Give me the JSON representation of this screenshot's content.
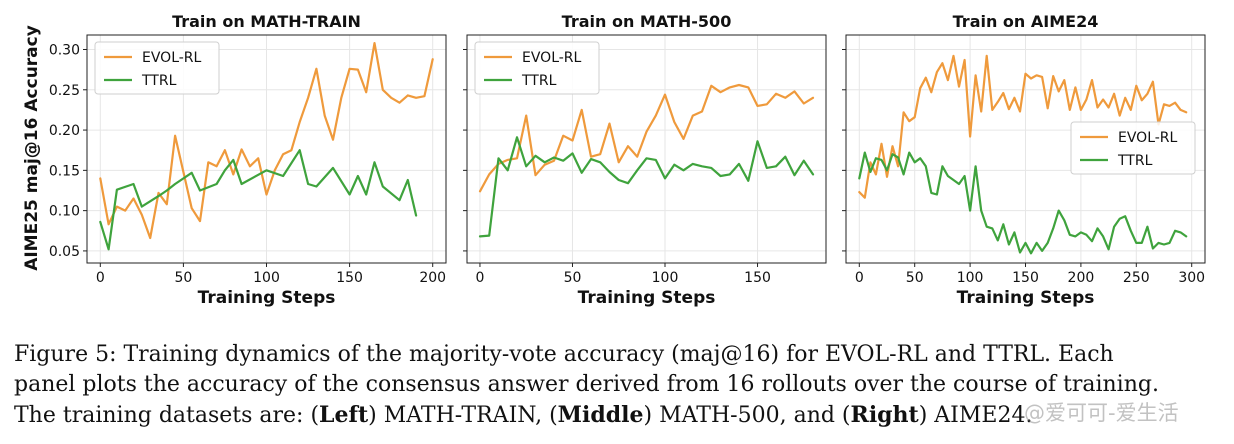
{
  "figure": {
    "ylabel": "AIME25 maj@16 Accuracy",
    "xlabel": "Training Steps"
  },
  "colors": {
    "evol": "#ef9a3c",
    "ttrl": "#3fa33d",
    "grid": "#e6e6e6"
  },
  "chart_data": [
    {
      "type": "line",
      "title": "Train on MATH-TRAIN",
      "xlabel": "Training Steps",
      "ylabel": "AIME25 maj@16 Accuracy",
      "xlim": [
        -8,
        208
      ],
      "ylim": [
        0.035,
        0.318
      ],
      "xticks": [
        0,
        50,
        100,
        150,
        200
      ],
      "yticks": [
        0.05,
        0.1,
        0.15,
        0.2,
        0.25,
        0.3
      ],
      "ytick_labels": [
        "0.05",
        "0.10",
        "0.15",
        "0.20",
        "0.25",
        "0.30"
      ],
      "grid": true,
      "legend": "top-left",
      "series": [
        {
          "name": "EVOL-RL",
          "x": [
            0,
            5,
            10,
            15,
            20,
            25,
            30,
            35,
            40,
            45,
            50,
            55,
            60,
            65,
            70,
            75,
            80,
            85,
            90,
            95,
            100,
            105,
            110,
            115,
            120,
            125,
            130,
            135,
            140,
            145,
            150,
            155,
            160,
            165,
            170,
            175,
            180,
            185,
            190,
            195,
            200
          ],
          "values": [
            0.14,
            0.083,
            0.105,
            0.1,
            0.115,
            0.095,
            0.066,
            0.122,
            0.108,
            0.193,
            0.148,
            0.103,
            0.087,
            0.16,
            0.155,
            0.175,
            0.145,
            0.176,
            0.155,
            0.165,
            0.12,
            0.15,
            0.17,
            0.175,
            0.21,
            0.24,
            0.276,
            0.218,
            0.188,
            0.24,
            0.276,
            0.275,
            0.247,
            0.308,
            0.25,
            0.24,
            0.234,
            0.243,
            0.24,
            0.242,
            0.288
          ]
        },
        {
          "name": "TTRL",
          "x": [
            0,
            5,
            10,
            20,
            25,
            35,
            40,
            45,
            55,
            60,
            70,
            75,
            80,
            85,
            100,
            110,
            120,
            125,
            130,
            140,
            150,
            155,
            160,
            165,
            170,
            180,
            185,
            190
          ],
          "values": [
            0.086,
            0.052,
            0.126,
            0.133,
            0.105,
            0.118,
            0.125,
            0.133,
            0.147,
            0.125,
            0.133,
            0.15,
            0.163,
            0.133,
            0.15,
            0.143,
            0.175,
            0.133,
            0.13,
            0.153,
            0.12,
            0.143,
            0.12,
            0.16,
            0.13,
            0.113,
            0.138,
            0.094
          ]
        }
      ]
    },
    {
      "type": "line",
      "title": "Train on MATH-500",
      "xlabel": "Training Steps",
      "ylabel": "",
      "xlim": [
        -7,
        187
      ],
      "ylim": [
        0.035,
        0.318
      ],
      "xticks": [
        0,
        50,
        100,
        150
      ],
      "yticks": [
        0.05,
        0.1,
        0.15,
        0.2,
        0.25,
        0.3
      ],
      "ytick_labels": [],
      "grid": true,
      "legend": "top-left",
      "series": [
        {
          "name": "EVOL-RL",
          "x": [
            0,
            5,
            10,
            15,
            20,
            25,
            30,
            35,
            40,
            45,
            50,
            55,
            60,
            65,
            70,
            75,
            80,
            85,
            90,
            95,
            100,
            105,
            110,
            115,
            120,
            125,
            130,
            135,
            140,
            145,
            150,
            155,
            160,
            165,
            170,
            175,
            180
          ],
          "values": [
            0.124,
            0.145,
            0.158,
            0.163,
            0.165,
            0.218,
            0.144,
            0.157,
            0.162,
            0.193,
            0.187,
            0.225,
            0.167,
            0.17,
            0.208,
            0.16,
            0.18,
            0.167,
            0.198,
            0.218,
            0.244,
            0.21,
            0.189,
            0.218,
            0.223,
            0.255,
            0.247,
            0.253,
            0.256,
            0.253,
            0.23,
            0.232,
            0.245,
            0.24,
            0.248,
            0.233,
            0.24
          ]
        },
        {
          "name": "TTRL",
          "x": [
            0,
            5,
            10,
            15,
            20,
            25,
            30,
            35,
            40,
            45,
            50,
            55,
            60,
            65,
            70,
            75,
            80,
            85,
            90,
            95,
            100,
            105,
            110,
            115,
            120,
            125,
            130,
            135,
            140,
            145,
            150,
            155,
            160,
            165,
            170,
            175,
            180
          ],
          "values": [
            0.068,
            0.069,
            0.165,
            0.15,
            0.191,
            0.155,
            0.168,
            0.16,
            0.166,
            0.162,
            0.171,
            0.147,
            0.164,
            0.16,
            0.148,
            0.138,
            0.134,
            0.15,
            0.165,
            0.163,
            0.14,
            0.157,
            0.15,
            0.158,
            0.155,
            0.153,
            0.143,
            0.145,
            0.158,
            0.137,
            0.186,
            0.153,
            0.155,
            0.167,
            0.144,
            0.162,
            0.145
          ]
        }
      ]
    },
    {
      "type": "line",
      "title": "Train on AIME24",
      "xlabel": "Training Steps",
      "ylabel": "",
      "xlim": [
        -12,
        312
      ],
      "ylim": [
        0.035,
        0.318
      ],
      "xticks": [
        0,
        50,
        100,
        150,
        200,
        250,
        300
      ],
      "yticks": [
        0.05,
        0.1,
        0.15,
        0.2,
        0.25,
        0.3
      ],
      "ytick_labels": [],
      "grid": true,
      "legend": "center-right",
      "series": [
        {
          "name": "EVOL-RL",
          "x": [
            0,
            5,
            10,
            15,
            20,
            25,
            30,
            35,
            40,
            45,
            50,
            55,
            60,
            65,
            70,
            75,
            80,
            85,
            90,
            95,
            100,
            105,
            110,
            115,
            120,
            125,
            130,
            135,
            140,
            145,
            150,
            155,
            160,
            165,
            170,
            175,
            180,
            185,
            190,
            195,
            200,
            205,
            210,
            215,
            220,
            225,
            230,
            235,
            240,
            245,
            250,
            255,
            260,
            265,
            270,
            275,
            280,
            285,
            290,
            295
          ],
          "values": [
            0.123,
            0.116,
            0.16,
            0.145,
            0.183,
            0.142,
            0.18,
            0.155,
            0.222,
            0.211,
            0.216,
            0.252,
            0.265,
            0.247,
            0.272,
            0.283,
            0.262,
            0.292,
            0.254,
            0.287,
            0.192,
            0.268,
            0.223,
            0.292,
            0.225,
            0.235,
            0.246,
            0.226,
            0.24,
            0.223,
            0.27,
            0.264,
            0.268,
            0.266,
            0.227,
            0.267,
            0.248,
            0.262,
            0.225,
            0.253,
            0.225,
            0.238,
            0.262,
            0.228,
            0.238,
            0.228,
            0.245,
            0.218,
            0.24,
            0.225,
            0.255,
            0.237,
            0.245,
            0.26,
            0.207,
            0.232,
            0.23,
            0.234,
            0.225,
            0.222
          ]
        },
        {
          "name": "TTRL",
          "x": [
            0,
            5,
            10,
            15,
            20,
            25,
            30,
            35,
            40,
            45,
            50,
            55,
            60,
            65,
            70,
            75,
            80,
            85,
            90,
            95,
            100,
            105,
            110,
            115,
            120,
            125,
            130,
            135,
            140,
            145,
            150,
            155,
            160,
            165,
            170,
            175,
            180,
            185,
            190,
            195,
            200,
            205,
            210,
            215,
            220,
            225,
            230,
            235,
            240,
            245,
            250,
            255,
            260,
            265,
            270,
            275,
            280,
            285,
            290,
            295
          ],
          "values": [
            0.14,
            0.172,
            0.148,
            0.165,
            0.163,
            0.15,
            0.17,
            0.166,
            0.145,
            0.172,
            0.16,
            0.165,
            0.155,
            0.122,
            0.12,
            0.155,
            0.143,
            0.138,
            0.133,
            0.143,
            0.1,
            0.155,
            0.1,
            0.08,
            0.078,
            0.063,
            0.083,
            0.058,
            0.073,
            0.048,
            0.06,
            0.047,
            0.06,
            0.05,
            0.06,
            0.078,
            0.1,
            0.088,
            0.07,
            0.068,
            0.073,
            0.07,
            0.062,
            0.078,
            0.068,
            0.052,
            0.08,
            0.09,
            0.093,
            0.075,
            0.06,
            0.06,
            0.08,
            0.053,
            0.06,
            0.058,
            0.06,
            0.075,
            0.073,
            0.068
          ]
        }
      ]
    }
  ],
  "caption": {
    "line1": "Figure 5: Training dynamics of the majority-vote accuracy (maj@16) for EVOL-RL and TTRL. Each",
    "line2": "panel plots the accuracy of the consensus answer derived from 16 rollouts over the course of training.",
    "line3_a": "The training datasets are: (",
    "line3_left": "Left",
    "line3_b": ") MATH-TRAIN, (",
    "line3_middle": "Middle",
    "line3_c": ") MATH-500, and (",
    "line3_right": "Right",
    "line3_d": ") AIME24."
  },
  "watermark": "@爱可可-爱生活"
}
